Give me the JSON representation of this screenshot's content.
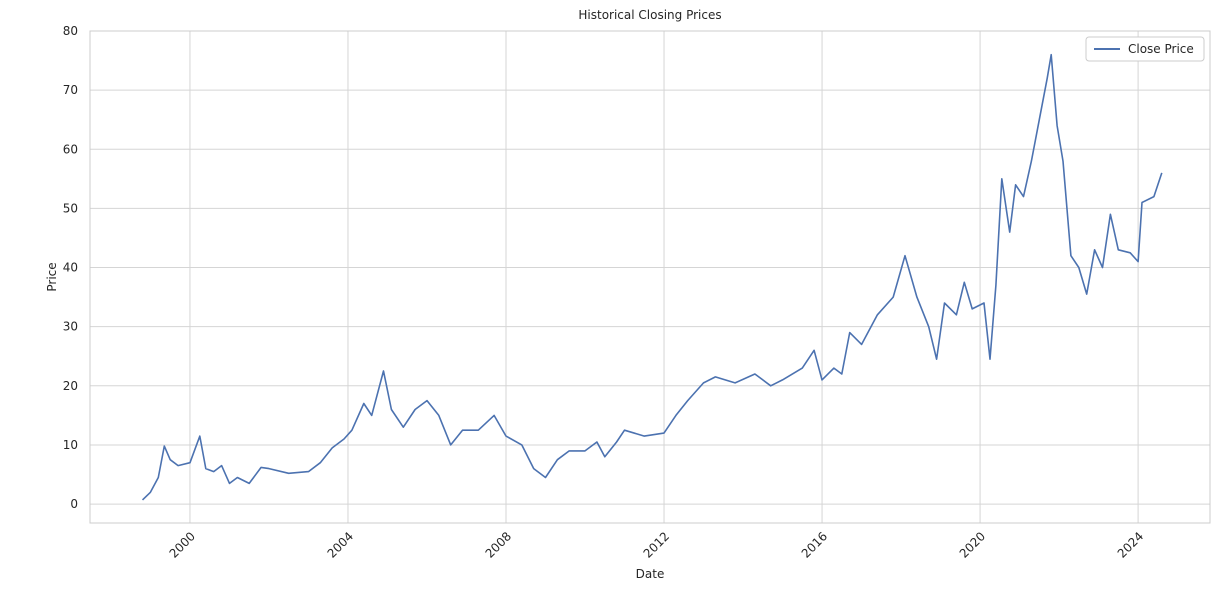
{
  "chart_data": {
    "type": "line",
    "title": "Historical Closing Prices",
    "x_label": "Date",
    "y_label": "Price",
    "xlim": [
      1997.47,
      2025.82
    ],
    "xticks": [
      2000,
      2004,
      2008,
      2012,
      2016,
      2020,
      2024
    ],
    "ylim": [
      -3.2,
      80
    ],
    "yticks": [
      0,
      10,
      20,
      30,
      40,
      50,
      60,
      70,
      80
    ],
    "grid": true,
    "legend": "upper right",
    "x": [
      1998.8,
      1999.0,
      1999.2,
      1999.35,
      1999.5,
      1999.7,
      2000.0,
      2000.25,
      2000.4,
      2000.6,
      2000.8,
      2001.0,
      2001.2,
      2001.5,
      2001.8,
      2002.0,
      2002.5,
      2003.0,
      2003.3,
      2003.6,
      2003.9,
      2004.1,
      2004.4,
      2004.6,
      2004.9,
      2005.1,
      2005.4,
      2005.7,
      2006.0,
      2006.3,
      2006.6,
      2006.9,
      2007.3,
      2007.7,
      2008.0,
      2008.4,
      2008.7,
      2009.0,
      2009.3,
      2009.6,
      2010.0,
      2010.3,
      2010.5,
      2010.8,
      2011.0,
      2011.5,
      2012.0,
      2012.3,
      2012.6,
      2013.0,
      2013.3,
      2013.8,
      2014.3,
      2014.7,
      2015.0,
      2015.5,
      2015.8,
      2016.0,
      2016.3,
      2016.5,
      2016.7,
      2017.0,
      2017.4,
      2017.8,
      2018.1,
      2018.4,
      2018.7,
      2018.9,
      2019.1,
      2019.4,
      2019.6,
      2019.8,
      2020.1,
      2020.25,
      2020.4,
      2020.55,
      2020.75,
      2020.9,
      2021.1,
      2021.3,
      2021.5,
      2021.7,
      2021.8,
      2021.95,
      2022.1,
      2022.3,
      2022.5,
      2022.7,
      2022.9,
      2023.1,
      2023.3,
      2023.5,
      2023.8,
      2024.0,
      2024.1,
      2024.4,
      2024.6
    ],
    "series": [
      {
        "name": "Close Price",
        "color": "#4c72b0",
        "values": [
          0.7,
          2,
          4.5,
          9.8,
          7.5,
          6.5,
          7,
          11.5,
          6,
          5.5,
          6.5,
          3.5,
          4.5,
          3.5,
          6.2,
          6,
          5.2,
          5.5,
          7,
          9.5,
          11,
          12.5,
          17,
          15,
          22.5,
          16,
          13,
          16,
          17.5,
          15,
          10,
          12.5,
          12.5,
          15,
          11.5,
          10,
          6,
          4.5,
          7.5,
          9,
          9,
          10.5,
          8,
          10.5,
          12.5,
          11.5,
          12,
          15,
          17.5,
          20.5,
          21.5,
          20.5,
          22,
          20,
          21,
          23,
          26,
          21,
          23,
          22,
          29,
          27,
          32,
          35,
          42,
          35,
          30,
          24.5,
          34,
          32,
          37.5,
          33,
          34,
          24.5,
          37,
          55,
          46,
          54,
          52,
          58,
          65,
          72,
          76,
          64,
          58,
          42,
          40,
          35.5,
          43,
          40,
          49,
          43,
          42.5,
          41,
          51,
          52,
          56
        ]
      }
    ]
  }
}
